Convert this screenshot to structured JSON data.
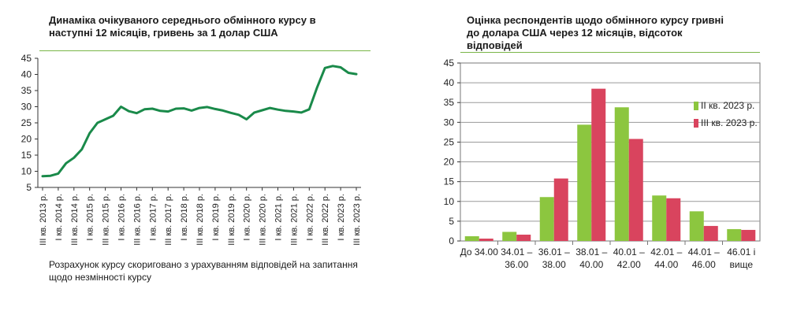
{
  "left": {
    "title_line1": "Динаміка очікуваного середнього обмінного курсу в",
    "title_line2": "наступні 12 місяців, гривень за 1 долар США",
    "note_line1": "Розрахунок курсу скориговано з урахуванням відповідей на запитання",
    "note_line2": "щодо незмінності курсу"
  },
  "right": {
    "title_line1": "Оцінка респондентів щодо обмінного курсу гривні",
    "title_line2": "до долара США через 12 місяців, відсоток",
    "title_line3": "відповідей"
  },
  "colors": {
    "line": "#1a8a4a",
    "green_bar": "#8cc63f",
    "red_bar": "#d9445e",
    "accent_rule": "#7ab648"
  },
  "chart_data": [
    {
      "type": "line",
      "title": "Динаміка очікуваного середнього обмінного курсу в наступні 12 місяців, гривень за 1 долар США",
      "ylim": [
        5,
        45
      ],
      "yticks": [
        5,
        10,
        15,
        20,
        25,
        30,
        35,
        40,
        45
      ],
      "xtick_labels": [
        "III кв. 2013 р.",
        "I кв. 2014 р.",
        "III кв. 2014 р.",
        "I кв. 2015 р.",
        "III кв. 2015 р.",
        "I кв. 2016 р.",
        "III кв. 2016 р.",
        "I кв. 2017 р.",
        "III кв. 2017 р.",
        "I кв. 2018 р.",
        "III кв. 2018 р.",
        "I кв. 2019 р.",
        "III кв. 2019 р.",
        "I кв. 2020 р.",
        "III кв. 2020 р.",
        "I кв. 2021 р.",
        "III кв. 2021 р.",
        "I кв. 2022 р.",
        "III кв. 2022 р.",
        "I кв. 2023 р.",
        "III кв. 2023 р."
      ],
      "values": [
        8.5,
        8.6,
        9.3,
        12.5,
        14.2,
        16.8,
        21.8,
        25.0,
        26.1,
        27.2,
        30.0,
        28.6,
        28.0,
        29.2,
        29.4,
        28.7,
        28.5,
        29.4,
        29.5,
        28.8,
        29.6,
        29.9,
        29.3,
        28.8,
        28.1,
        27.5,
        26.1,
        28.2,
        28.9,
        29.6,
        29.1,
        28.7,
        28.5,
        28.2,
        29.2,
        36.0,
        42.0,
        42.6,
        42.2,
        40.5,
        40.1
      ]
    },
    {
      "type": "bar",
      "title": "Оцінка респондентів щодо обмінного курсу гривні до долара США через 12 місяців, відсоток відповідей",
      "ylim": [
        0,
        45
      ],
      "yticks": [
        0,
        5,
        10,
        15,
        20,
        25,
        30,
        35,
        40,
        45
      ],
      "categories": [
        [
          "До 34.00",
          ""
        ],
        [
          "34.01 –",
          "36.00"
        ],
        [
          "36.01 –",
          "38.00"
        ],
        [
          "38.01 –",
          "40.00"
        ],
        [
          "40.01 –",
          "42.00"
        ],
        [
          "42.01 –",
          "44.00"
        ],
        [
          "44.01 –",
          "46.00"
        ],
        [
          "46.01 і",
          "вище"
        ]
      ],
      "series": [
        {
          "name": "II кв. 2023 р.",
          "values": [
            1.2,
            2.3,
            11.1,
            29.4,
            33.8,
            11.5,
            7.5,
            3.0
          ]
        },
        {
          "name": "III кв. 2023 р.",
          "values": [
            0.6,
            1.6,
            15.8,
            38.5,
            25.8,
            10.8,
            3.8,
            2.8
          ]
        }
      ],
      "legend": "right"
    }
  ]
}
